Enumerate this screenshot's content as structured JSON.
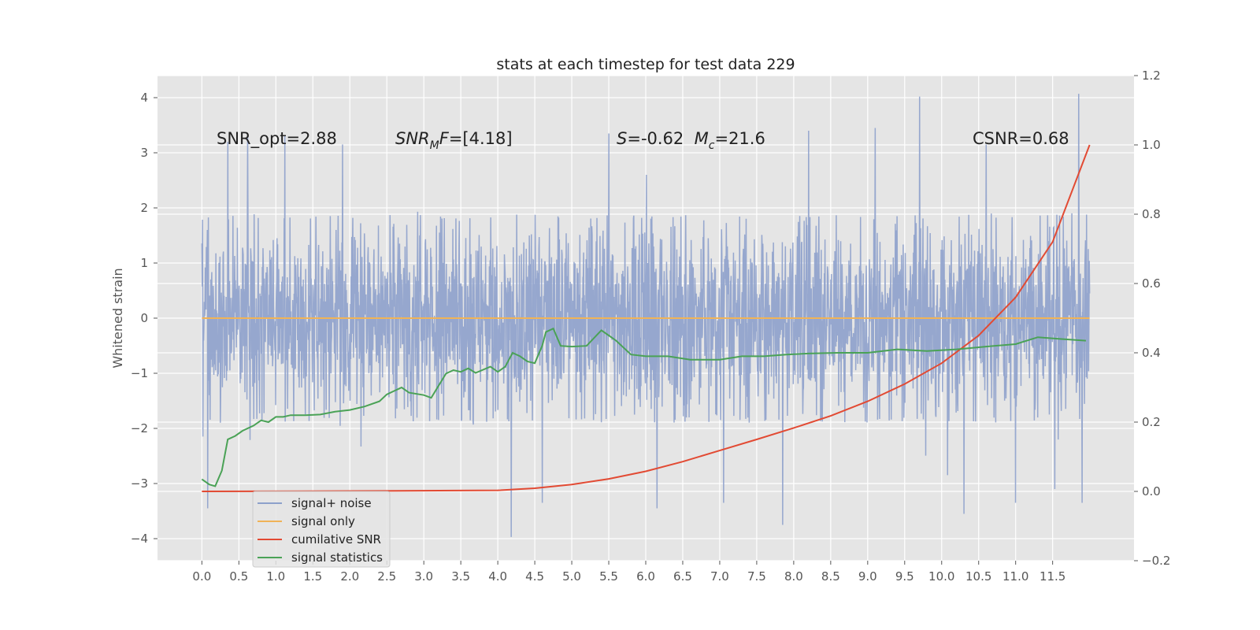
{
  "chart_data": {
    "type": "line",
    "title": "stats at each timestep for test data 229",
    "ylabel": "Whitened strain",
    "ylabel_right": "",
    "xlabel": "",
    "xlim": [
      -0.6,
      12.6
    ],
    "ylim": [
      -4.4,
      4.4
    ],
    "ylim_right": [
      -0.2,
      1.2
    ],
    "x_ticks": [
      0.0,
      0.5,
      1.0,
      1.5,
      2.0,
      2.5,
      3.0,
      3.5,
      4.0,
      4.5,
      5.0,
      5.5,
      6.0,
      6.5,
      7.0,
      7.5,
      8.0,
      8.5,
      9.0,
      9.5,
      10.0,
      10.5,
      11.0,
      11.5
    ],
    "x_tick_labels": [
      "0.0",
      "0.5",
      "1.0",
      "1.5",
      "2.0",
      "2.5",
      "3.0",
      "3.5",
      "4.0",
      "4.5",
      "5.0",
      "5.5",
      "6.0",
      "6.5",
      "7.0",
      "7.5",
      "8.0",
      "8.5",
      "9.0",
      "9.5",
      "10.0",
      "10.5",
      "11.0",
      "11.5"
    ],
    "y_ticks": [
      -4,
      -3,
      -2,
      -1,
      0,
      1,
      2,
      3,
      4
    ],
    "y_tick_labels": [
      "−4",
      "−3",
      "−2",
      "−1",
      "0",
      "1",
      "2",
      "3",
      "4"
    ],
    "y_right_ticks": [
      -0.2,
      0.0,
      0.2,
      0.4,
      0.6,
      0.8,
      1.0,
      1.2
    ],
    "y_right_tick_labels": [
      "−0.2",
      "0.0",
      "0.2",
      "0.4",
      "0.6",
      "0.8",
      "1.0",
      "1.2"
    ],
    "grid": true,
    "background": "#e5e5e5",
    "legend_position": "lower-left",
    "annotations": [
      {
        "key": "snr_opt",
        "text": "SNR_opt=2.88"
      },
      {
        "key": "snr_mf",
        "text": "SNR_MF=[4.18]"
      },
      {
        "key": "spin_chirp",
        "text": "S=-0.62  M_c=21.6"
      },
      {
        "key": "csnr",
        "text": "CSNR=0.68"
      }
    ],
    "series": [
      {
        "name": "signal+ noise",
        "axis": "left",
        "color": "#8da0cb",
        "kind": "noise",
        "x_range": [
          0.0,
          12.0
        ],
        "typical_range": [
          -1.9,
          1.9
        ],
        "extreme_range": [
          -3.97,
          4.07
        ],
        "spikes": [
          {
            "x": 0.08,
            "y": -3.45
          },
          {
            "x": 0.35,
            "y": 3.2
          },
          {
            "x": 0.62,
            "y": 3.3
          },
          {
            "x": 1.12,
            "y": 3.3
          },
          {
            "x": 1.9,
            "y": 3.15
          },
          {
            "x": 4.18,
            "y": -3.97
          },
          {
            "x": 4.6,
            "y": -3.35
          },
          {
            "x": 5.5,
            "y": 3.35
          },
          {
            "x": 6.15,
            "y": -3.45
          },
          {
            "x": 7.05,
            "y": -3.35
          },
          {
            "x": 7.85,
            "y": -3.75
          },
          {
            "x": 9.1,
            "y": 3.45
          },
          {
            "x": 10.3,
            "y": -3.55
          },
          {
            "x": 11.0,
            "y": -3.35
          },
          {
            "x": 11.53,
            "y": -3.1
          },
          {
            "x": 10.6,
            "y": 3.15
          },
          {
            "x": 8.2,
            "y": 3.4
          },
          {
            "x": 9.7,
            "y": 4.02
          },
          {
            "x": 11.85,
            "y": 4.07
          },
          {
            "x": 11.9,
            "y": -3.35
          }
        ]
      },
      {
        "name": "signal only",
        "axis": "left",
        "color": "#f0b357",
        "x": [
          0.0,
          12.0
        ],
        "y": [
          0.0,
          0.0
        ]
      },
      {
        "name": "cumilative SNR",
        "axis": "right",
        "color": "#e24a33",
        "x": [
          0.0,
          2.0,
          4.0,
          4.5,
          5.0,
          5.5,
          6.0,
          6.5,
          7.0,
          7.5,
          8.0,
          8.5,
          9.0,
          9.5,
          10.0,
          10.5,
          11.0,
          11.5,
          12.0
        ],
        "y": [
          0.0,
          0.001,
          0.003,
          0.009,
          0.02,
          0.036,
          0.058,
          0.086,
          0.118,
          0.15,
          0.183,
          0.218,
          0.26,
          0.31,
          0.37,
          0.45,
          0.56,
          0.72,
          1.0
        ]
      },
      {
        "name": "signal statistics",
        "axis": "right",
        "color": "#4aa256",
        "x": [
          0.0,
          0.1,
          0.18,
          0.27,
          0.35,
          0.45,
          0.55,
          0.7,
          0.8,
          0.9,
          1.0,
          1.1,
          1.2,
          1.4,
          1.6,
          1.8,
          2.0,
          2.2,
          2.4,
          2.5,
          2.6,
          2.7,
          2.8,
          3.0,
          3.1,
          3.3,
          3.4,
          3.5,
          3.6,
          3.7,
          3.9,
          4.0,
          4.1,
          4.2,
          4.3,
          4.4,
          4.5,
          4.6,
          4.65,
          4.75,
          4.85,
          5.0,
          5.2,
          5.4,
          5.5,
          5.6,
          5.8,
          6.0,
          6.3,
          6.6,
          7.0,
          7.3,
          7.6,
          7.9,
          8.2,
          8.6,
          9.0,
          9.4,
          9.8,
          10.2,
          10.6,
          11.0,
          11.3,
          11.6,
          11.95
        ],
        "y": [
          0.035,
          0.02,
          0.015,
          0.06,
          0.15,
          0.16,
          0.175,
          0.19,
          0.205,
          0.2,
          0.215,
          0.215,
          0.22,
          0.22,
          0.222,
          0.23,
          0.235,
          0.245,
          0.26,
          0.28,
          0.29,
          0.3,
          0.285,
          0.278,
          0.27,
          0.34,
          0.35,
          0.345,
          0.355,
          0.342,
          0.36,
          0.345,
          0.36,
          0.4,
          0.39,
          0.375,
          0.37,
          0.42,
          0.46,
          0.47,
          0.42,
          0.418,
          0.42,
          0.465,
          0.45,
          0.435,
          0.395,
          0.39,
          0.39,
          0.38,
          0.38,
          0.39,
          0.39,
          0.395,
          0.398,
          0.4,
          0.4,
          0.41,
          0.405,
          0.41,
          0.418,
          0.425,
          0.445,
          0.44,
          0.435
        ]
      }
    ]
  }
}
